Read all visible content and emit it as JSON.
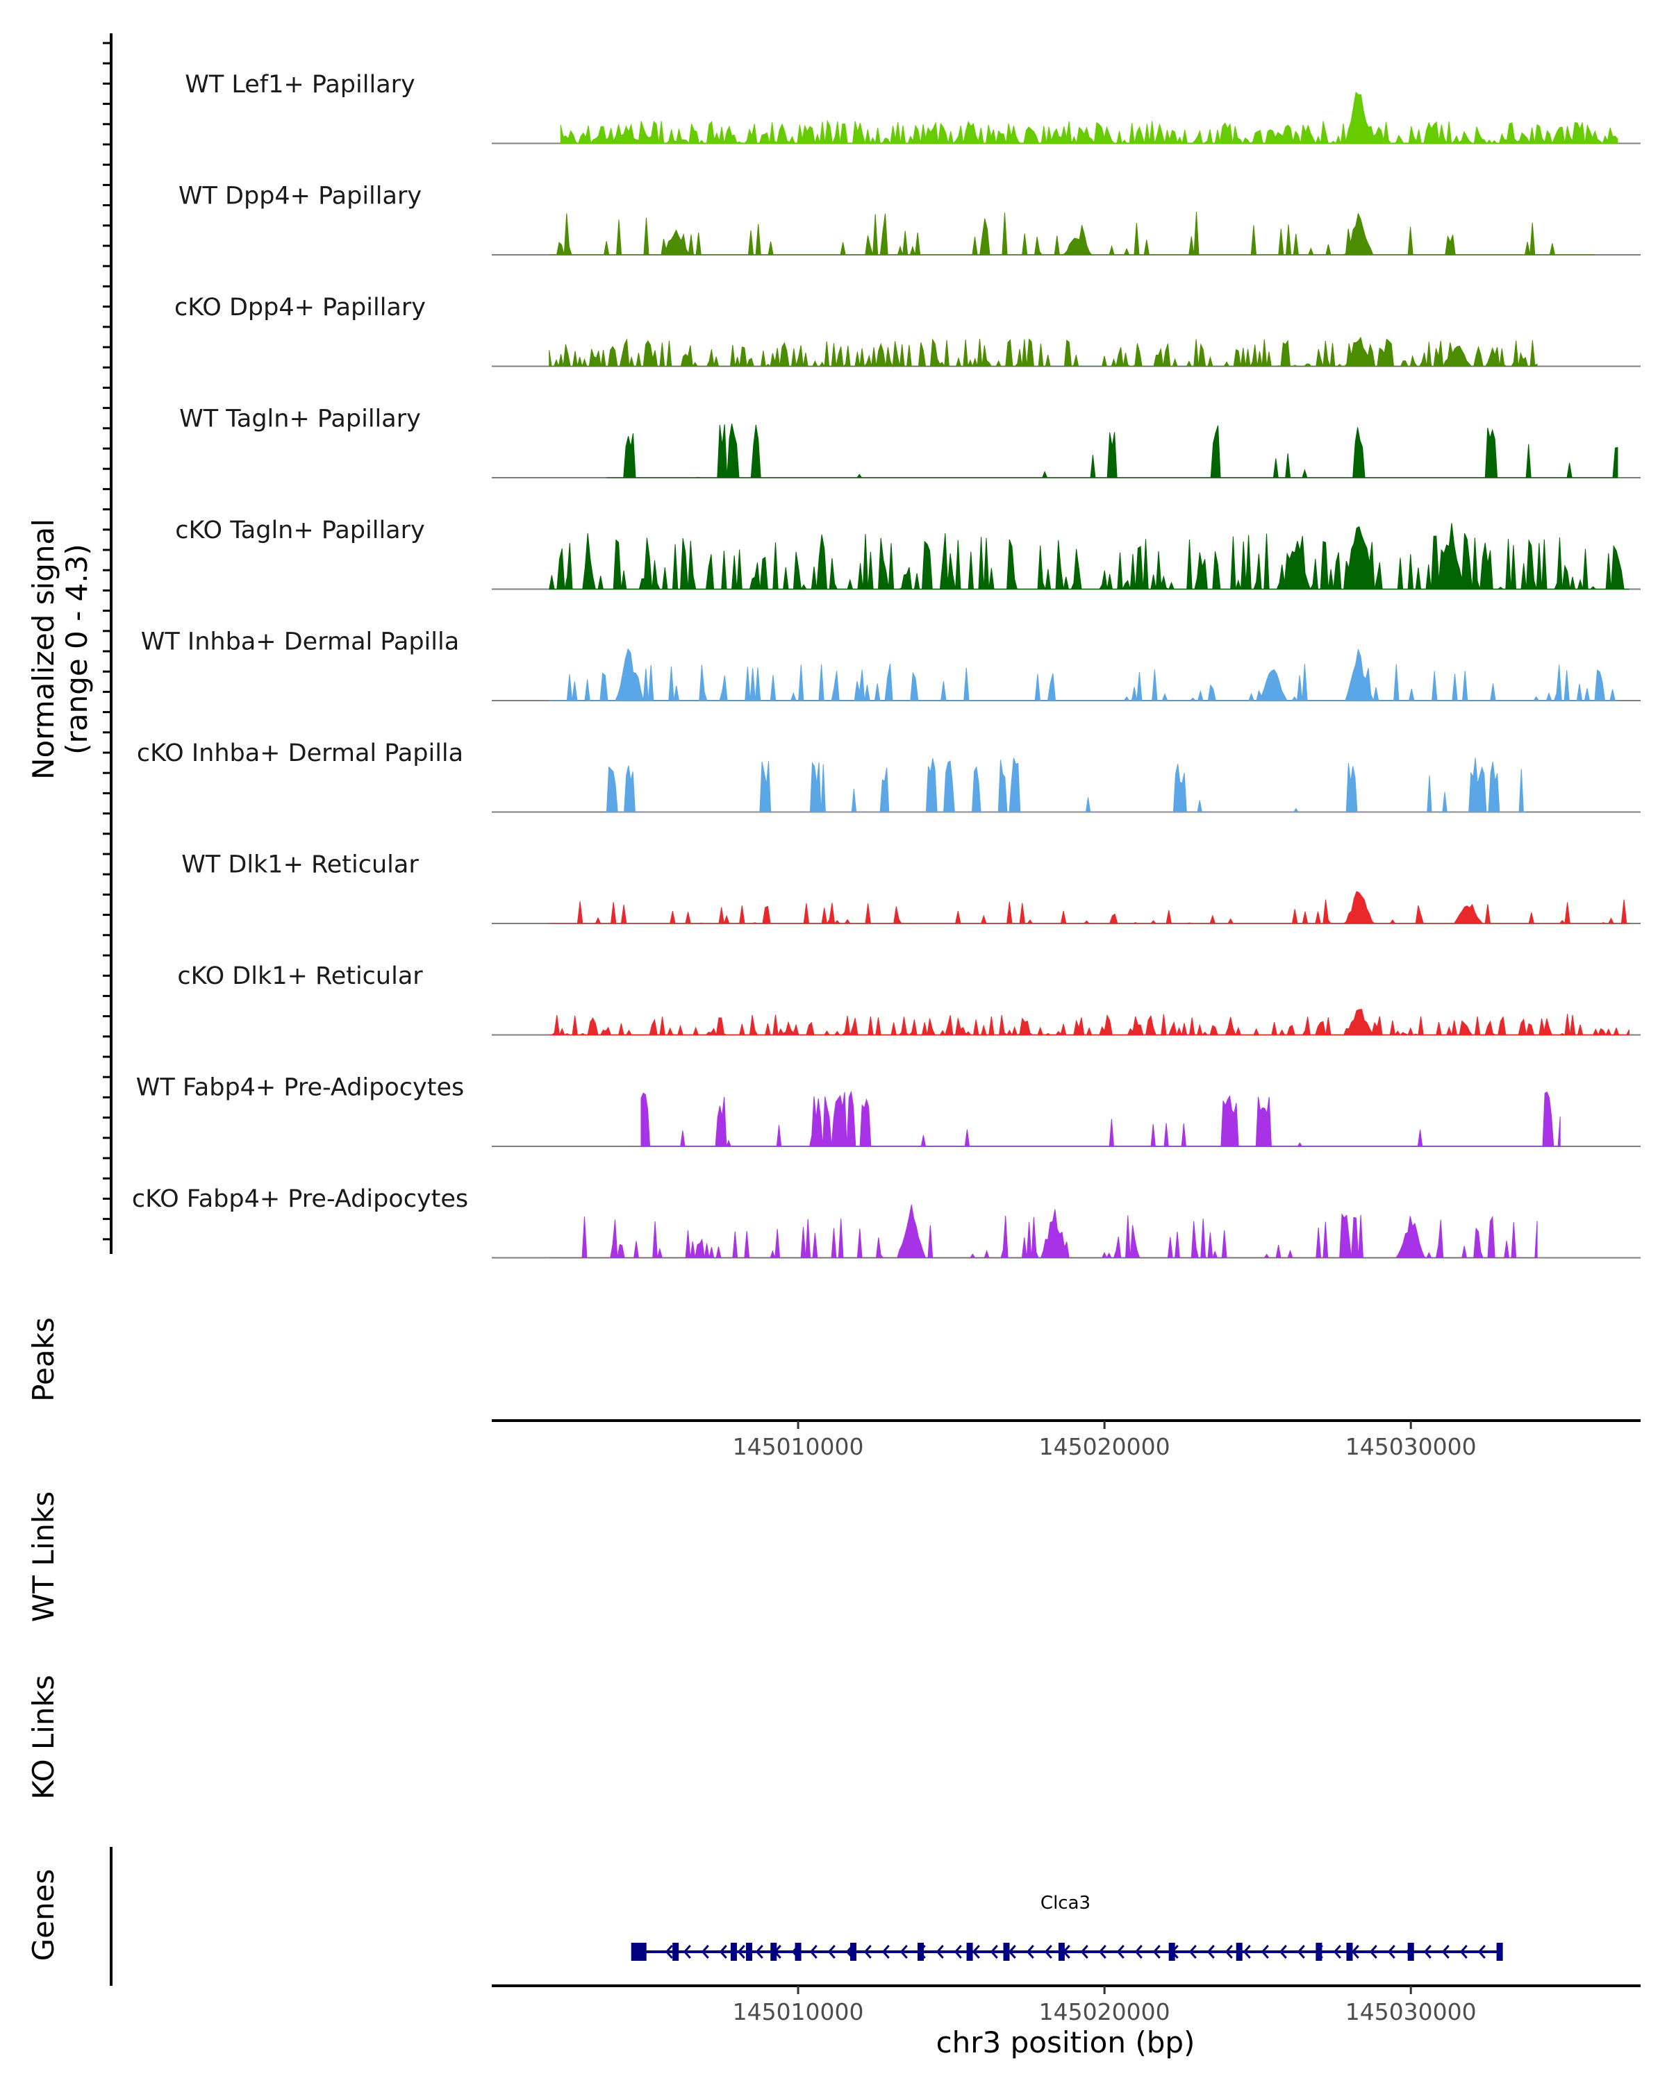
{
  "chart_data": {
    "type": "area",
    "title": "",
    "signal_axis_title": "Normalized signal",
    "signal_axis_subtitle": "(range 0 - 4.3)",
    "signal_range": [
      0,
      4.3
    ],
    "region_xlim": [
      145000000,
      145037500
    ],
    "tracks": [
      {
        "name": "WT Lef1+ Papillary",
        "color": "#66CC00"
      },
      {
        "name": "WT Dpp4+ Papillary",
        "color": "#4C8C00"
      },
      {
        "name": "cKO Dpp4+ Papillary",
        "color": "#4C8C00"
      },
      {
        "name": "WT Tagln+ Papillary",
        "color": "#006400"
      },
      {
        "name": "cKO Tagln+ Papillary",
        "color": "#006400"
      },
      {
        "name": "WT Inhba+ Dermal Papilla",
        "color": "#5AA6E6"
      },
      {
        "name": "cKO Inhba+ Dermal Papilla",
        "color": "#5AA6E6"
      },
      {
        "name": "WT Dlk1+ Reticular",
        "color": "#E8282A"
      },
      {
        "name": "cKO Dlk1+ Reticular",
        "color": "#E8282A"
      },
      {
        "name": "WT Fabp4+ Pre-Adipocytes",
        "color": "#A732E6"
      },
      {
        "name": "cKO Fabp4+ Pre-Adipocytes",
        "color": "#A732E6"
      }
    ],
    "peaks_label": "Peaks",
    "wt_links_label": "WT Links",
    "ko_links_label": "KO Links",
    "genes_label": "Genes",
    "x_ticks": [
      145010000,
      145020000,
      145030000
    ],
    "x_tick_labels": [
      "145010000",
      "145020000",
      "145030000"
    ],
    "xlabel": "chr3 position (bp)",
    "gene": {
      "name": "Clca3",
      "start": 145004800,
      "end": 145032900,
      "strand": "-",
      "color": "#000080",
      "exons": [
        145004800,
        145006000,
        145007900,
        145008400,
        145009200,
        145010000,
        145011800,
        145014000,
        145015600,
        145016800,
        145018600,
        145022200,
        145024400,
        145027000,
        145028000,
        145030000,
        145032900
      ]
    }
  }
}
